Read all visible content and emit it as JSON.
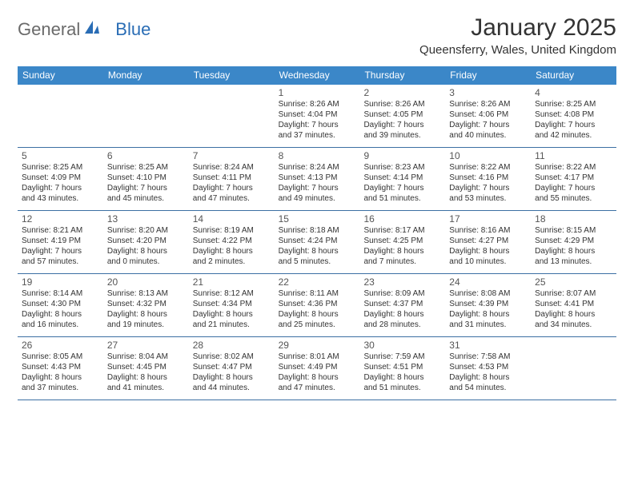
{
  "logo": {
    "general": "General",
    "blue": "Blue"
  },
  "title": "January 2025",
  "location": "Queensferry, Wales, United Kingdom",
  "colors": {
    "header_bg": "#3b87c8",
    "header_text": "#ffffff",
    "row_border": "#3b6fa3",
    "logo_blue": "#2a6db5",
    "logo_gray": "#6a6a6a",
    "text": "#333333"
  },
  "day_names": [
    "Sunday",
    "Monday",
    "Tuesday",
    "Wednesday",
    "Thursday",
    "Friday",
    "Saturday"
  ],
  "weeks": [
    [
      {
        "empty": true
      },
      {
        "empty": true
      },
      {
        "empty": true
      },
      {
        "num": "1",
        "sunrise": "Sunrise: 8:26 AM",
        "sunset": "Sunset: 4:04 PM",
        "d1": "Daylight: 7 hours",
        "d2": "and 37 minutes."
      },
      {
        "num": "2",
        "sunrise": "Sunrise: 8:26 AM",
        "sunset": "Sunset: 4:05 PM",
        "d1": "Daylight: 7 hours",
        "d2": "and 39 minutes."
      },
      {
        "num": "3",
        "sunrise": "Sunrise: 8:26 AM",
        "sunset": "Sunset: 4:06 PM",
        "d1": "Daylight: 7 hours",
        "d2": "and 40 minutes."
      },
      {
        "num": "4",
        "sunrise": "Sunrise: 8:25 AM",
        "sunset": "Sunset: 4:08 PM",
        "d1": "Daylight: 7 hours",
        "d2": "and 42 minutes."
      }
    ],
    [
      {
        "num": "5",
        "sunrise": "Sunrise: 8:25 AM",
        "sunset": "Sunset: 4:09 PM",
        "d1": "Daylight: 7 hours",
        "d2": "and 43 minutes."
      },
      {
        "num": "6",
        "sunrise": "Sunrise: 8:25 AM",
        "sunset": "Sunset: 4:10 PM",
        "d1": "Daylight: 7 hours",
        "d2": "and 45 minutes."
      },
      {
        "num": "7",
        "sunrise": "Sunrise: 8:24 AM",
        "sunset": "Sunset: 4:11 PM",
        "d1": "Daylight: 7 hours",
        "d2": "and 47 minutes."
      },
      {
        "num": "8",
        "sunrise": "Sunrise: 8:24 AM",
        "sunset": "Sunset: 4:13 PM",
        "d1": "Daylight: 7 hours",
        "d2": "and 49 minutes."
      },
      {
        "num": "9",
        "sunrise": "Sunrise: 8:23 AM",
        "sunset": "Sunset: 4:14 PM",
        "d1": "Daylight: 7 hours",
        "d2": "and 51 minutes."
      },
      {
        "num": "10",
        "sunrise": "Sunrise: 8:22 AM",
        "sunset": "Sunset: 4:16 PM",
        "d1": "Daylight: 7 hours",
        "d2": "and 53 minutes."
      },
      {
        "num": "11",
        "sunrise": "Sunrise: 8:22 AM",
        "sunset": "Sunset: 4:17 PM",
        "d1": "Daylight: 7 hours",
        "d2": "and 55 minutes."
      }
    ],
    [
      {
        "num": "12",
        "sunrise": "Sunrise: 8:21 AM",
        "sunset": "Sunset: 4:19 PM",
        "d1": "Daylight: 7 hours",
        "d2": "and 57 minutes."
      },
      {
        "num": "13",
        "sunrise": "Sunrise: 8:20 AM",
        "sunset": "Sunset: 4:20 PM",
        "d1": "Daylight: 8 hours",
        "d2": "and 0 minutes."
      },
      {
        "num": "14",
        "sunrise": "Sunrise: 8:19 AM",
        "sunset": "Sunset: 4:22 PM",
        "d1": "Daylight: 8 hours",
        "d2": "and 2 minutes."
      },
      {
        "num": "15",
        "sunrise": "Sunrise: 8:18 AM",
        "sunset": "Sunset: 4:24 PM",
        "d1": "Daylight: 8 hours",
        "d2": "and 5 minutes."
      },
      {
        "num": "16",
        "sunrise": "Sunrise: 8:17 AM",
        "sunset": "Sunset: 4:25 PM",
        "d1": "Daylight: 8 hours",
        "d2": "and 7 minutes."
      },
      {
        "num": "17",
        "sunrise": "Sunrise: 8:16 AM",
        "sunset": "Sunset: 4:27 PM",
        "d1": "Daylight: 8 hours",
        "d2": "and 10 minutes."
      },
      {
        "num": "18",
        "sunrise": "Sunrise: 8:15 AM",
        "sunset": "Sunset: 4:29 PM",
        "d1": "Daylight: 8 hours",
        "d2": "and 13 minutes."
      }
    ],
    [
      {
        "num": "19",
        "sunrise": "Sunrise: 8:14 AM",
        "sunset": "Sunset: 4:30 PM",
        "d1": "Daylight: 8 hours",
        "d2": "and 16 minutes."
      },
      {
        "num": "20",
        "sunrise": "Sunrise: 8:13 AM",
        "sunset": "Sunset: 4:32 PM",
        "d1": "Daylight: 8 hours",
        "d2": "and 19 minutes."
      },
      {
        "num": "21",
        "sunrise": "Sunrise: 8:12 AM",
        "sunset": "Sunset: 4:34 PM",
        "d1": "Daylight: 8 hours",
        "d2": "and 21 minutes."
      },
      {
        "num": "22",
        "sunrise": "Sunrise: 8:11 AM",
        "sunset": "Sunset: 4:36 PM",
        "d1": "Daylight: 8 hours",
        "d2": "and 25 minutes."
      },
      {
        "num": "23",
        "sunrise": "Sunrise: 8:09 AM",
        "sunset": "Sunset: 4:37 PM",
        "d1": "Daylight: 8 hours",
        "d2": "and 28 minutes."
      },
      {
        "num": "24",
        "sunrise": "Sunrise: 8:08 AM",
        "sunset": "Sunset: 4:39 PM",
        "d1": "Daylight: 8 hours",
        "d2": "and 31 minutes."
      },
      {
        "num": "25",
        "sunrise": "Sunrise: 8:07 AM",
        "sunset": "Sunset: 4:41 PM",
        "d1": "Daylight: 8 hours",
        "d2": "and 34 minutes."
      }
    ],
    [
      {
        "num": "26",
        "sunrise": "Sunrise: 8:05 AM",
        "sunset": "Sunset: 4:43 PM",
        "d1": "Daylight: 8 hours",
        "d2": "and 37 minutes."
      },
      {
        "num": "27",
        "sunrise": "Sunrise: 8:04 AM",
        "sunset": "Sunset: 4:45 PM",
        "d1": "Daylight: 8 hours",
        "d2": "and 41 minutes."
      },
      {
        "num": "28",
        "sunrise": "Sunrise: 8:02 AM",
        "sunset": "Sunset: 4:47 PM",
        "d1": "Daylight: 8 hours",
        "d2": "and 44 minutes."
      },
      {
        "num": "29",
        "sunrise": "Sunrise: 8:01 AM",
        "sunset": "Sunset: 4:49 PM",
        "d1": "Daylight: 8 hours",
        "d2": "and 47 minutes."
      },
      {
        "num": "30",
        "sunrise": "Sunrise: 7:59 AM",
        "sunset": "Sunset: 4:51 PM",
        "d1": "Daylight: 8 hours",
        "d2": "and 51 minutes."
      },
      {
        "num": "31",
        "sunrise": "Sunrise: 7:58 AM",
        "sunset": "Sunset: 4:53 PM",
        "d1": "Daylight: 8 hours",
        "d2": "and 54 minutes."
      },
      {
        "empty": true
      }
    ]
  ]
}
